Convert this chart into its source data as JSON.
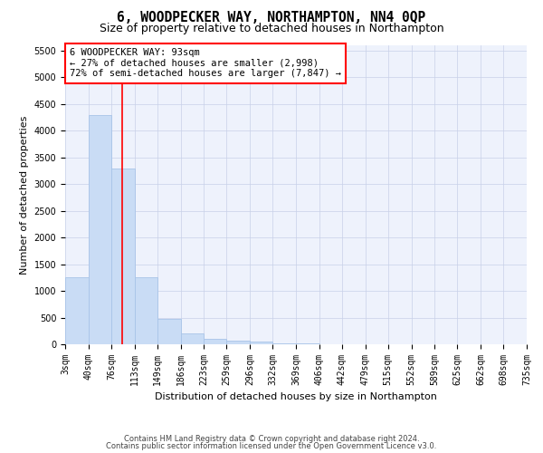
{
  "title": "6, WOODPECKER WAY, NORTHAMPTON, NN4 0QP",
  "subtitle": "Size of property relative to detached houses in Northampton",
  "xlabel": "Distribution of detached houses by size in Northampton",
  "ylabel": "Number of detached properties",
  "bar_color": "#c9dcf5",
  "bar_edgecolor": "#a8c4e8",
  "vline_x": 93,
  "vline_color": "red",
  "annotation_line1": "6 WOODPECKER WAY: 93sqm",
  "annotation_line2": "← 27% of detached houses are smaller (2,998)",
  "annotation_line3": "72% of semi-detached houses are larger (7,847) →",
  "footer1": "Contains HM Land Registry data © Crown copyright and database right 2024.",
  "footer2": "Contains public sector information licensed under the Open Government Licence v3.0.",
  "bin_edges": [
    3,
    40,
    76,
    113,
    149,
    186,
    223,
    259,
    296,
    332,
    369,
    406,
    442,
    479,
    515,
    552,
    589,
    625,
    662,
    698,
    735
  ],
  "bin_labels": [
    "3sqm",
    "40sqm",
    "76sqm",
    "113sqm",
    "149sqm",
    "186sqm",
    "223sqm",
    "259sqm",
    "296sqm",
    "332sqm",
    "369sqm",
    "406sqm",
    "442sqm",
    "479sqm",
    "515sqm",
    "552sqm",
    "589sqm",
    "625sqm",
    "662sqm",
    "698sqm",
    "735sqm"
  ],
  "bar_heights": [
    1250,
    4300,
    3300,
    1250,
    475,
    200,
    100,
    75,
    50,
    20,
    10,
    5,
    0,
    0,
    0,
    0,
    0,
    0,
    0,
    0
  ],
  "ylim": [
    0,
    5600
  ],
  "yticks": [
    0,
    500,
    1000,
    1500,
    2000,
    2500,
    3000,
    3500,
    4000,
    4500,
    5000,
    5500
  ],
  "background_color": "#eef2fc",
  "grid_color": "#c8d0e8",
  "title_fontsize": 10.5,
  "subtitle_fontsize": 9,
  "axis_label_fontsize": 8,
  "tick_fontsize": 7,
  "annotation_fontsize": 7.5,
  "footer_fontsize": 6
}
